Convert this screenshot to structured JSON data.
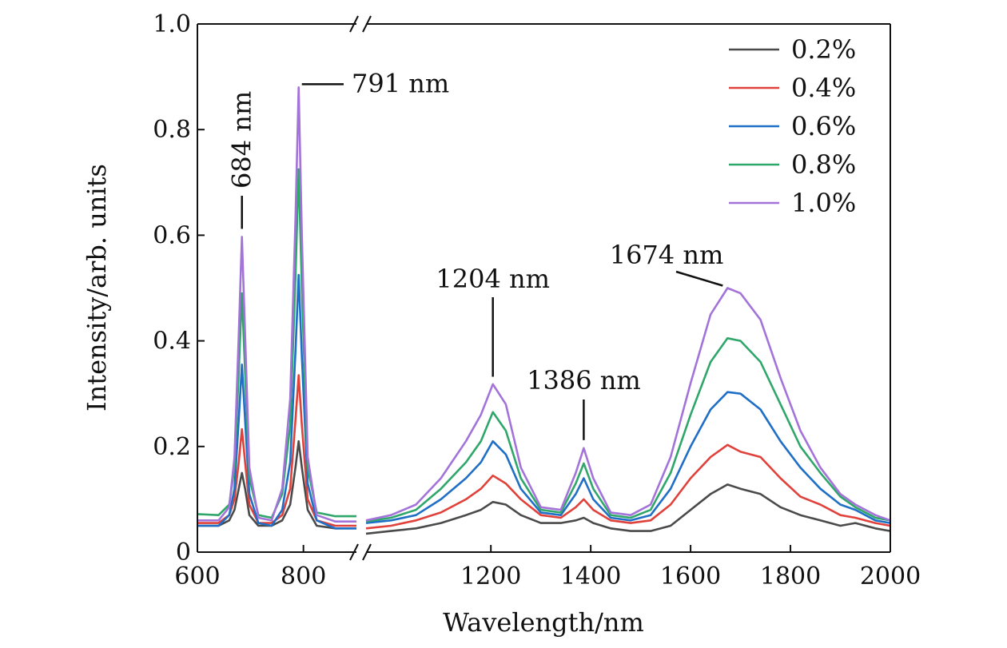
{
  "chart_data": {
    "type": "line",
    "xlabel": "Wavelength/nm",
    "ylabel": "Intensity/arb. units",
    "xlim": [
      600,
      2000
    ],
    "ylim": [
      0,
      1.0
    ],
    "axis_break": [
      900,
      950
    ],
    "grid": false,
    "legend_position": "top-right",
    "x_ticks": [
      {
        "value": 600,
        "label": "600"
      },
      {
        "value": 800,
        "label": "800"
      },
      {
        "value": 1200,
        "label": "1200"
      },
      {
        "value": 1400,
        "label": "1400"
      },
      {
        "value": 1600,
        "label": "1600"
      },
      {
        "value": 1800,
        "label": "1800"
      },
      {
        "value": 2000,
        "label": "2000"
      }
    ],
    "y_ticks": [
      {
        "value": 0,
        "label": "0"
      },
      {
        "value": 0.2,
        "label": "0.2"
      },
      {
        "value": 0.4,
        "label": "0.4"
      },
      {
        "value": 0.6,
        "label": "0.6"
      },
      {
        "value": 0.8,
        "label": "0.8"
      },
      {
        "value": 1.0,
        "label": "1.0"
      }
    ],
    "annotations": [
      {
        "text": "684 nm",
        "x": 684,
        "y": 0.6,
        "orientation": "vertical"
      },
      {
        "text": "791 nm",
        "x": 791,
        "y": 0.88,
        "orientation": "horizontal"
      },
      {
        "text": "1204 nm",
        "x": 1204,
        "y": 0.32,
        "orientation": "horizontal"
      },
      {
        "text": "1386 nm",
        "x": 1386,
        "y": 0.2,
        "orientation": "horizontal"
      },
      {
        "text": "1674 nm",
        "x": 1674,
        "y": 0.5,
        "orientation": "horizontal"
      }
    ],
    "series": [
      {
        "name": "0.2%",
        "color": "#4a4a4a",
        "points": [
          [
            600,
            0.05
          ],
          [
            640,
            0.05
          ],
          [
            660,
            0.06
          ],
          [
            670,
            0.08
          ],
          [
            678,
            0.12
          ],
          [
            684,
            0.15
          ],
          [
            690,
            0.12
          ],
          [
            698,
            0.07
          ],
          [
            715,
            0.05
          ],
          [
            740,
            0.05
          ],
          [
            760,
            0.06
          ],
          [
            775,
            0.09
          ],
          [
            785,
            0.16
          ],
          [
            791,
            0.21
          ],
          [
            797,
            0.16
          ],
          [
            808,
            0.08
          ],
          [
            825,
            0.05
          ],
          [
            860,
            0.045
          ],
          [
            900,
            0.045
          ],
          [
            950,
            0.035
          ],
          [
            1000,
            0.04
          ],
          [
            1050,
            0.045
          ],
          [
            1100,
            0.055
          ],
          [
            1150,
            0.07
          ],
          [
            1180,
            0.08
          ],
          [
            1204,
            0.095
          ],
          [
            1230,
            0.09
          ],
          [
            1260,
            0.07
          ],
          [
            1300,
            0.055
          ],
          [
            1340,
            0.055
          ],
          [
            1370,
            0.06
          ],
          [
            1386,
            0.065
          ],
          [
            1405,
            0.055
          ],
          [
            1440,
            0.045
          ],
          [
            1480,
            0.04
          ],
          [
            1520,
            0.04
          ],
          [
            1560,
            0.05
          ],
          [
            1600,
            0.08
          ],
          [
            1640,
            0.11
          ],
          [
            1674,
            0.128
          ],
          [
            1700,
            0.12
          ],
          [
            1740,
            0.11
          ],
          [
            1780,
            0.085
          ],
          [
            1820,
            0.07
          ],
          [
            1860,
            0.06
          ],
          [
            1900,
            0.05
          ],
          [
            1930,
            0.055
          ],
          [
            1970,
            0.045
          ],
          [
            2000,
            0.04
          ]
        ]
      },
      {
        "name": "0.4%",
        "color": "#e0413a",
        "points": [
          [
            600,
            0.055
          ],
          [
            640,
            0.055
          ],
          [
            660,
            0.07
          ],
          [
            670,
            0.1
          ],
          [
            678,
            0.17
          ],
          [
            684,
            0.233
          ],
          [
            690,
            0.17
          ],
          [
            698,
            0.09
          ],
          [
            715,
            0.055
          ],
          [
            740,
            0.055
          ],
          [
            760,
            0.07
          ],
          [
            775,
            0.12
          ],
          [
            785,
            0.25
          ],
          [
            791,
            0.335
          ],
          [
            797,
            0.24
          ],
          [
            808,
            0.1
          ],
          [
            825,
            0.06
          ],
          [
            860,
            0.05
          ],
          [
            900,
            0.05
          ],
          [
            950,
            0.045
          ],
          [
            1000,
            0.05
          ],
          [
            1050,
            0.06
          ],
          [
            1100,
            0.075
          ],
          [
            1150,
            0.1
          ],
          [
            1180,
            0.12
          ],
          [
            1204,
            0.145
          ],
          [
            1230,
            0.13
          ],
          [
            1260,
            0.1
          ],
          [
            1300,
            0.07
          ],
          [
            1340,
            0.065
          ],
          [
            1370,
            0.085
          ],
          [
            1386,
            0.1
          ],
          [
            1405,
            0.08
          ],
          [
            1440,
            0.06
          ],
          [
            1480,
            0.055
          ],
          [
            1520,
            0.06
          ],
          [
            1560,
            0.09
          ],
          [
            1600,
            0.14
          ],
          [
            1640,
            0.18
          ],
          [
            1674,
            0.203
          ],
          [
            1700,
            0.19
          ],
          [
            1740,
            0.18
          ],
          [
            1780,
            0.14
          ],
          [
            1820,
            0.105
          ],
          [
            1860,
            0.09
          ],
          [
            1900,
            0.07
          ],
          [
            1930,
            0.065
          ],
          [
            1970,
            0.055
          ],
          [
            2000,
            0.05
          ]
        ]
      },
      {
        "name": "0.6%",
        "color": "#1f6fc6",
        "points": [
          [
            600,
            0.05
          ],
          [
            640,
            0.05
          ],
          [
            660,
            0.07
          ],
          [
            670,
            0.12
          ],
          [
            678,
            0.25
          ],
          [
            684,
            0.355
          ],
          [
            690,
            0.25
          ],
          [
            698,
            0.11
          ],
          [
            715,
            0.055
          ],
          [
            740,
            0.05
          ],
          [
            760,
            0.08
          ],
          [
            775,
            0.17
          ],
          [
            785,
            0.38
          ],
          [
            791,
            0.525
          ],
          [
            797,
            0.37
          ],
          [
            808,
            0.13
          ],
          [
            825,
            0.06
          ],
          [
            860,
            0.045
          ],
          [
            900,
            0.045
          ],
          [
            950,
            0.055
          ],
          [
            1000,
            0.06
          ],
          [
            1050,
            0.07
          ],
          [
            1100,
            0.1
          ],
          [
            1150,
            0.14
          ],
          [
            1180,
            0.17
          ],
          [
            1204,
            0.21
          ],
          [
            1230,
            0.185
          ],
          [
            1260,
            0.12
          ],
          [
            1300,
            0.075
          ],
          [
            1340,
            0.07
          ],
          [
            1370,
            0.11
          ],
          [
            1386,
            0.14
          ],
          [
            1405,
            0.1
          ],
          [
            1440,
            0.065
          ],
          [
            1480,
            0.06
          ],
          [
            1520,
            0.07
          ],
          [
            1560,
            0.12
          ],
          [
            1600,
            0.2
          ],
          [
            1640,
            0.27
          ],
          [
            1674,
            0.303
          ],
          [
            1700,
            0.3
          ],
          [
            1740,
            0.27
          ],
          [
            1780,
            0.21
          ],
          [
            1820,
            0.16
          ],
          [
            1860,
            0.12
          ],
          [
            1900,
            0.09
          ],
          [
            1930,
            0.08
          ],
          [
            1970,
            0.06
          ],
          [
            2000,
            0.055
          ]
        ]
      },
      {
        "name": "0.8%",
        "color": "#2fa66a",
        "points": [
          [
            600,
            0.072
          ],
          [
            640,
            0.07
          ],
          [
            660,
            0.09
          ],
          [
            670,
            0.16
          ],
          [
            678,
            0.34
          ],
          [
            684,
            0.49
          ],
          [
            690,
            0.34
          ],
          [
            698,
            0.14
          ],
          [
            715,
            0.07
          ],
          [
            740,
            0.065
          ],
          [
            760,
            0.11
          ],
          [
            775,
            0.24
          ],
          [
            785,
            0.52
          ],
          [
            791,
            0.725
          ],
          [
            797,
            0.5
          ],
          [
            808,
            0.16
          ],
          [
            825,
            0.075
          ],
          [
            860,
            0.068
          ],
          [
            900,
            0.068
          ],
          [
            950,
            0.058
          ],
          [
            1000,
            0.065
          ],
          [
            1050,
            0.08
          ],
          [
            1100,
            0.12
          ],
          [
            1150,
            0.17
          ],
          [
            1180,
            0.21
          ],
          [
            1204,
            0.265
          ],
          [
            1230,
            0.23
          ],
          [
            1260,
            0.14
          ],
          [
            1300,
            0.08
          ],
          [
            1340,
            0.075
          ],
          [
            1370,
            0.13
          ],
          [
            1386,
            0.168
          ],
          [
            1405,
            0.12
          ],
          [
            1440,
            0.07
          ],
          [
            1480,
            0.065
          ],
          [
            1520,
            0.08
          ],
          [
            1560,
            0.15
          ],
          [
            1600,
            0.26
          ],
          [
            1640,
            0.36
          ],
          [
            1674,
            0.405
          ],
          [
            1700,
            0.4
          ],
          [
            1740,
            0.36
          ],
          [
            1780,
            0.28
          ],
          [
            1820,
            0.2
          ],
          [
            1860,
            0.15
          ],
          [
            1900,
            0.105
          ],
          [
            1930,
            0.085
          ],
          [
            1970,
            0.065
          ],
          [
            2000,
            0.06
          ]
        ]
      },
      {
        "name": "1.0%",
        "color": "#a373d9",
        "points": [
          [
            600,
            0.06
          ],
          [
            640,
            0.06
          ],
          [
            660,
            0.085
          ],
          [
            670,
            0.18
          ],
          [
            678,
            0.41
          ],
          [
            684,
            0.597
          ],
          [
            690,
            0.41
          ],
          [
            698,
            0.16
          ],
          [
            715,
            0.065
          ],
          [
            740,
            0.06
          ],
          [
            760,
            0.12
          ],
          [
            775,
            0.29
          ],
          [
            785,
            0.63
          ],
          [
            791,
            0.88
          ],
          [
            797,
            0.6
          ],
          [
            808,
            0.18
          ],
          [
            825,
            0.07
          ],
          [
            860,
            0.058
          ],
          [
            900,
            0.058
          ],
          [
            950,
            0.06
          ],
          [
            1000,
            0.07
          ],
          [
            1050,
            0.09
          ],
          [
            1100,
            0.14
          ],
          [
            1150,
            0.21
          ],
          [
            1180,
            0.26
          ],
          [
            1204,
            0.318
          ],
          [
            1230,
            0.28
          ],
          [
            1260,
            0.16
          ],
          [
            1300,
            0.085
          ],
          [
            1340,
            0.08
          ],
          [
            1370,
            0.15
          ],
          [
            1386,
            0.197
          ],
          [
            1405,
            0.14
          ],
          [
            1440,
            0.075
          ],
          [
            1480,
            0.07
          ],
          [
            1520,
            0.09
          ],
          [
            1560,
            0.18
          ],
          [
            1600,
            0.32
          ],
          [
            1640,
            0.45
          ],
          [
            1674,
            0.5
          ],
          [
            1700,
            0.49
          ],
          [
            1740,
            0.44
          ],
          [
            1780,
            0.33
          ],
          [
            1820,
            0.23
          ],
          [
            1860,
            0.16
          ],
          [
            1900,
            0.11
          ],
          [
            1930,
            0.09
          ],
          [
            1970,
            0.07
          ],
          [
            2000,
            0.06
          ]
        ]
      }
    ]
  }
}
